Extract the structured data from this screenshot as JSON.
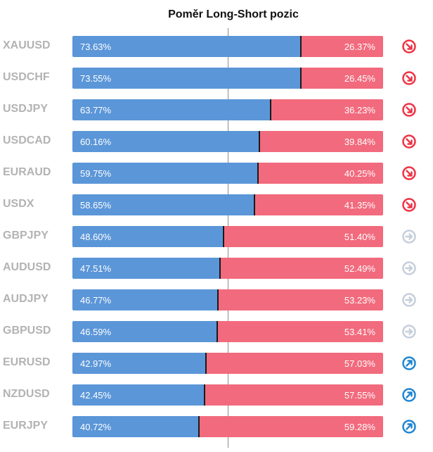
{
  "title": "Poměr Long-Short pozic",
  "colors": {
    "long": "#5b96d8",
    "short": "#f26a7d",
    "down": "#ee3344",
    "neutral": "#c5cfdb",
    "up": "#1f86d1"
  },
  "chart_data": {
    "type": "bar",
    "stacked": true,
    "orientation": "horizontal",
    "categories": [
      "XAUUSD",
      "USDCHF",
      "USDJPY",
      "USDCAD",
      "EURAUD",
      "USDX",
      "GBPJPY",
      "AUDUSD",
      "AUDJPY",
      "GBPUSD",
      "EURUSD",
      "NZDUSD",
      "EURJPY"
    ],
    "series": [
      {
        "values": [
          73.63,
          73.55,
          63.77,
          60.16,
          59.75,
          58.65,
          48.6,
          47.51,
          46.77,
          46.59,
          42.97,
          42.45,
          40.72
        ],
        "labels": [
          "73.63%",
          "73.55%",
          "63.77%",
          "60.16%",
          "59.75%",
          "58.65%",
          "48.60%",
          "47.51%",
          "46.77%",
          "46.59%",
          "42.97%",
          "42.45%",
          "40.72%"
        ]
      },
      {
        "values": [
          26.37,
          26.45,
          36.23,
          39.84,
          40.25,
          41.35,
          51.4,
          52.49,
          53.23,
          53.41,
          57.03,
          57.55,
          59.28
        ],
        "labels": [
          "26.37%",
          "26.45%",
          "36.23%",
          "39.84%",
          "40.25%",
          "41.35%",
          "51.40%",
          "52.49%",
          "53.23%",
          "53.41%",
          "57.03%",
          "57.55%",
          "59.28%"
        ]
      }
    ],
    "signals": [
      "down-right-arrow-icon",
      "down-right-arrow-icon",
      "down-right-arrow-icon",
      "down-right-arrow-icon",
      "down-right-arrow-icon",
      "down-right-arrow-icon",
      "right-arrow-icon",
      "right-arrow-icon",
      "right-arrow-icon",
      "right-arrow-icon",
      "up-right-arrow-icon",
      "up-right-arrow-icon",
      "up-right-arrow-icon"
    ],
    "xlim": [
      0,
      100
    ],
    "reference_line": 50,
    "legend": "none",
    "grid": false
  }
}
